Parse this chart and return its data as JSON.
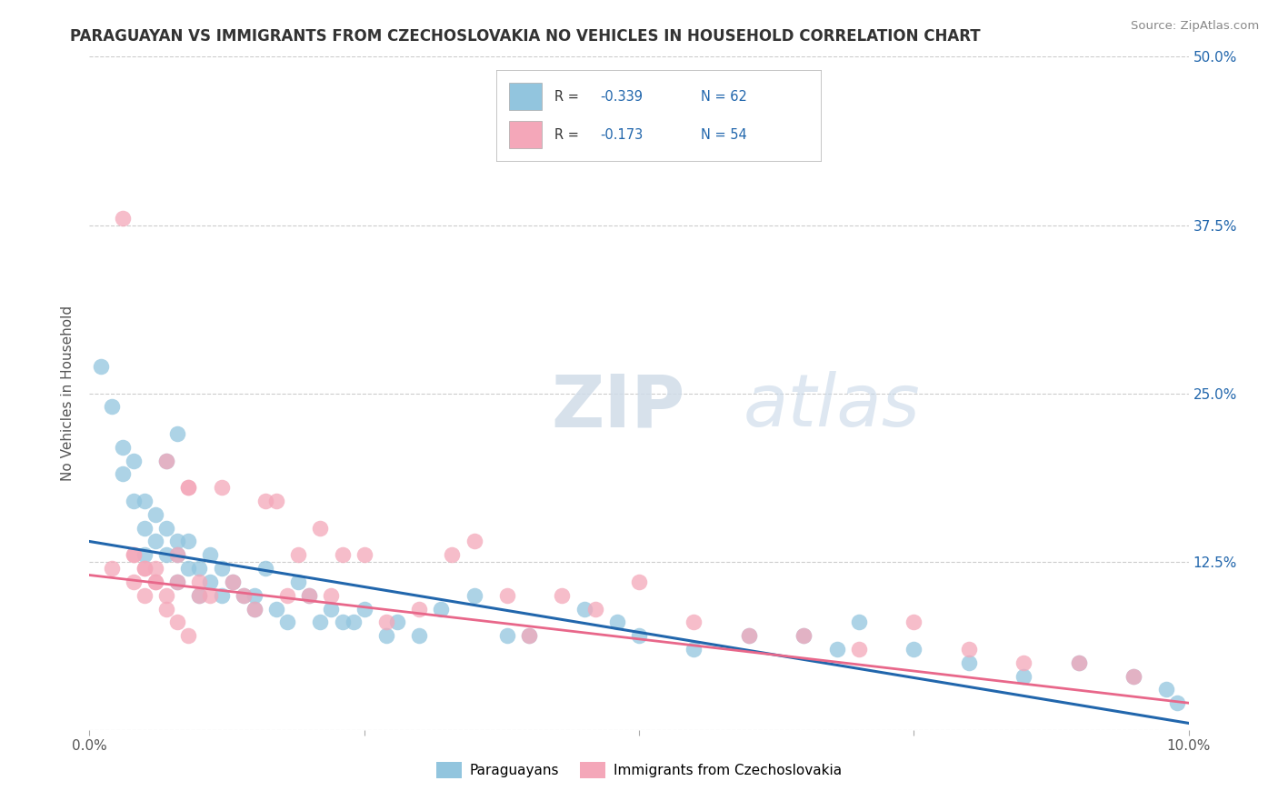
{
  "title": "PARAGUAYAN VS IMMIGRANTS FROM CZECHOSLOVAKIA NO VEHICLES IN HOUSEHOLD CORRELATION CHART",
  "source": "Source: ZipAtlas.com",
  "ylabel": "No Vehicles in Household",
  "x_min": 0.0,
  "x_max": 0.1,
  "y_min": 0.0,
  "y_max": 0.5,
  "x_ticks": [
    0.0,
    0.025,
    0.05,
    0.075,
    0.1
  ],
  "x_tick_labels": [
    "0.0%",
    "",
    "",
    "",
    "10.0%"
  ],
  "y_ticks": [
    0.0,
    0.125,
    0.25,
    0.375,
    0.5
  ],
  "y_tick_labels": [
    "",
    "12.5%",
    "25.0%",
    "37.5%",
    "50.0%"
  ],
  "legend_r1": "R = -0.339",
  "legend_n1": "N = 62",
  "legend_r2": "R = -0.173",
  "legend_n2": "N = 54",
  "legend_label1": "Paraguayans",
  "legend_label2": "Immigrants from Czechoslovakia",
  "color_blue": "#92c5de",
  "color_pink": "#f4a7b9",
  "line_color_blue": "#2166ac",
  "line_color_pink": "#e8678a",
  "blue_intercept": 0.14,
  "blue_slope": -1.35,
  "pink_intercept": 0.115,
  "pink_slope": -0.95,
  "blue_x": [
    0.001,
    0.002,
    0.003,
    0.003,
    0.004,
    0.004,
    0.005,
    0.005,
    0.005,
    0.006,
    0.006,
    0.007,
    0.007,
    0.008,
    0.008,
    0.008,
    0.009,
    0.009,
    0.01,
    0.01,
    0.011,
    0.011,
    0.012,
    0.012,
    0.013,
    0.014,
    0.015,
    0.015,
    0.016,
    0.017,
    0.018,
    0.019,
    0.02,
    0.021,
    0.022,
    0.023,
    0.024,
    0.025,
    0.027,
    0.028,
    0.03,
    0.032,
    0.035,
    0.038,
    0.04,
    0.045,
    0.048,
    0.05,
    0.055,
    0.06,
    0.065,
    0.068,
    0.07,
    0.075,
    0.08,
    0.085,
    0.09,
    0.095,
    0.098,
    0.099,
    0.008,
    0.007
  ],
  "blue_y": [
    0.27,
    0.24,
    0.21,
    0.19,
    0.2,
    0.17,
    0.17,
    0.15,
    0.13,
    0.16,
    0.14,
    0.13,
    0.15,
    0.13,
    0.14,
    0.11,
    0.14,
    0.12,
    0.12,
    0.1,
    0.11,
    0.13,
    0.1,
    0.12,
    0.11,
    0.1,
    0.1,
    0.09,
    0.12,
    0.09,
    0.08,
    0.11,
    0.1,
    0.08,
    0.09,
    0.08,
    0.08,
    0.09,
    0.07,
    0.08,
    0.07,
    0.09,
    0.1,
    0.07,
    0.07,
    0.09,
    0.08,
    0.07,
    0.06,
    0.07,
    0.07,
    0.06,
    0.08,
    0.06,
    0.05,
    0.04,
    0.05,
    0.04,
    0.03,
    0.02,
    0.22,
    0.2
  ],
  "pink_x": [
    0.002,
    0.003,
    0.004,
    0.004,
    0.005,
    0.005,
    0.006,
    0.006,
    0.007,
    0.007,
    0.008,
    0.008,
    0.009,
    0.009,
    0.01,
    0.01,
    0.011,
    0.012,
    0.013,
    0.014,
    0.015,
    0.016,
    0.017,
    0.018,
    0.019,
    0.02,
    0.021,
    0.022,
    0.023,
    0.025,
    0.027,
    0.03,
    0.033,
    0.035,
    0.038,
    0.04,
    0.043,
    0.046,
    0.05,
    0.055,
    0.06,
    0.065,
    0.07,
    0.075,
    0.08,
    0.085,
    0.09,
    0.095,
    0.004,
    0.005,
    0.006,
    0.007,
    0.008,
    0.009
  ],
  "pink_y": [
    0.12,
    0.38,
    0.13,
    0.11,
    0.12,
    0.1,
    0.12,
    0.11,
    0.2,
    0.1,
    0.13,
    0.11,
    0.18,
    0.18,
    0.1,
    0.11,
    0.1,
    0.18,
    0.11,
    0.1,
    0.09,
    0.17,
    0.17,
    0.1,
    0.13,
    0.1,
    0.15,
    0.1,
    0.13,
    0.13,
    0.08,
    0.09,
    0.13,
    0.14,
    0.1,
    0.07,
    0.1,
    0.09,
    0.11,
    0.08,
    0.07,
    0.07,
    0.06,
    0.08,
    0.06,
    0.05,
    0.05,
    0.04,
    0.13,
    0.12,
    0.11,
    0.09,
    0.08,
    0.07
  ]
}
